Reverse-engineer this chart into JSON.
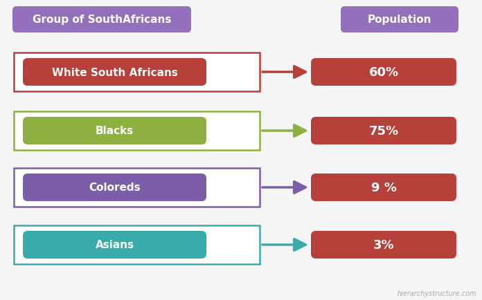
{
  "background_color": "#f5f5f5",
  "header_left": "Group of SouthAfricans",
  "header_right": "Population",
  "header_color": "#9370BB",
  "header_text_color": "#ffffff",
  "rows": [
    {
      "label": "White South Africans",
      "value": "60%",
      "box_color": "#B5413A",
      "arrow_color": "#B5413A",
      "border_color": "#B5413A"
    },
    {
      "label": "Blacks",
      "value": "75%",
      "box_color": "#8DB040",
      "arrow_color": "#8DB040",
      "border_color": "#8DB040"
    },
    {
      "label": "Coloreds",
      "value": "9 %",
      "box_color": "#7B5EA7",
      "arrow_color": "#7B5EA7",
      "border_color": "#7B5EA7"
    },
    {
      "label": "Asians",
      "value": "3%",
      "box_color": "#3AABAB",
      "arrow_color": "#3AABAB",
      "border_color": "#3AABAB"
    }
  ],
  "value_box_color": "#B5413A",
  "value_text_color": "#ffffff",
  "watermark": "hierarchystructure.com",
  "fig_w": 6.96,
  "fig_h": 4.35,
  "dpi": 100
}
